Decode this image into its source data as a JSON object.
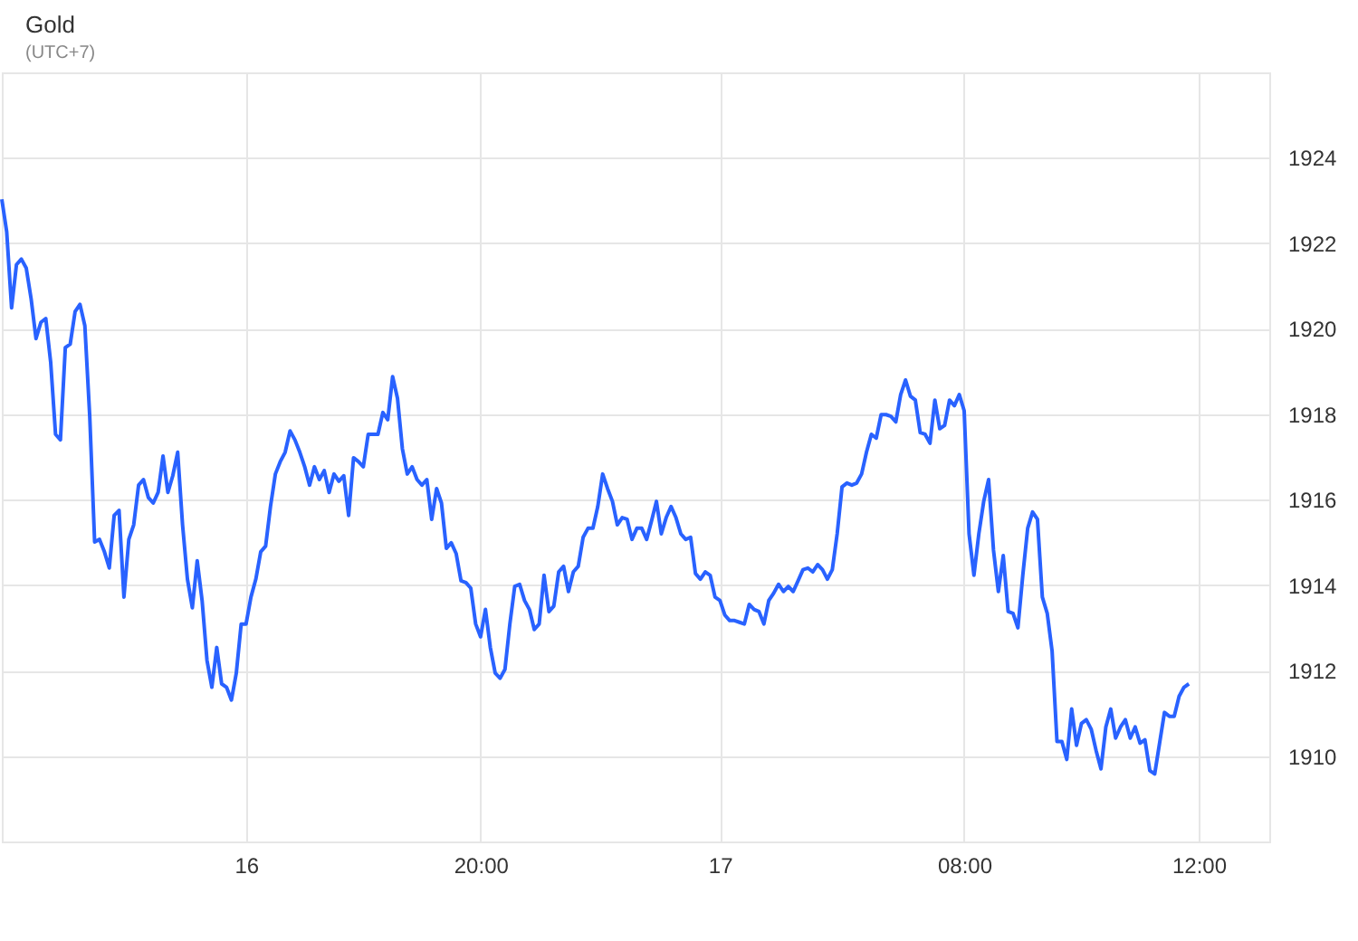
{
  "chart_data": {
    "type": "line",
    "title": "Gold",
    "subtitle": "(UTC+7)",
    "categories": [
      null,
      null,
      null,
      null,
      null,
      null,
      null,
      null,
      null,
      null,
      null,
      null,
      null,
      null,
      null,
      null,
      null,
      null,
      null,
      null,
      null,
      null,
      null,
      null,
      null,
      null,
      null,
      null,
      null,
      null,
      null,
      null,
      null,
      null,
      null,
      null,
      null,
      null,
      null,
      null,
      null,
      null,
      null,
      null,
      null,
      null,
      null,
      null,
      null,
      null,
      "16",
      null,
      null,
      null,
      null,
      null,
      null,
      null,
      null,
      null,
      null,
      null,
      null,
      null,
      null,
      null,
      null,
      null,
      null,
      null,
      null,
      null,
      null,
      null,
      null,
      null,
      null,
      null,
      null,
      null,
      null,
      null,
      null,
      null,
      null,
      null,
      null,
      null,
      null,
      null,
      null,
      null,
      null,
      null,
      null,
      null,
      null,
      null,
      "20:00",
      null,
      null,
      null,
      null,
      null,
      null,
      null,
      null,
      null,
      null,
      null,
      null,
      null,
      null,
      null,
      null,
      null,
      null,
      null,
      null,
      null,
      null,
      null,
      null,
      null,
      null,
      null,
      null,
      null,
      null,
      null,
      null,
      null,
      null,
      null,
      null,
      null,
      null,
      null,
      null,
      null,
      null,
      null,
      null,
      null,
      null,
      null,
      null,
      "17",
      null,
      null,
      null,
      null,
      null,
      null,
      null,
      null,
      null,
      null,
      null,
      null,
      null,
      null,
      null,
      null,
      null,
      null,
      null,
      null,
      null,
      null,
      null,
      null,
      null,
      null,
      null,
      null,
      null,
      null,
      null,
      null,
      null,
      null,
      null,
      null,
      null,
      null,
      null,
      null,
      null,
      null,
      null,
      null,
      null,
      null,
      null,
      null,
      null,
      "08:00",
      null,
      null,
      null,
      null,
      null,
      null,
      null,
      null,
      null,
      null,
      null,
      null,
      null,
      null,
      null,
      null,
      null,
      null,
      null,
      null,
      null,
      null,
      null,
      null,
      null,
      null,
      null,
      null,
      null,
      null,
      null,
      null,
      null,
      null,
      null,
      null,
      null,
      null,
      null,
      null,
      null,
      null,
      null,
      null,
      null,
      null,
      null,
      "12:00"
    ],
    "values": [
      1923.03,
      1922.27,
      1920.49,
      1921.5,
      1921.63,
      1921.42,
      1920.7,
      1919.77,
      1920.15,
      1920.24,
      1919.22,
      1917.53,
      1917.4,
      1919.56,
      1919.64,
      1920.4,
      1920.57,
      1920.07,
      1917.95,
      1915.01,
      1915.07,
      1914.78,
      1914.4,
      1915.63,
      1915.75,
      1913.72,
      1915.07,
      1915.41,
      1916.34,
      1916.47,
      1916.05,
      1915.92,
      1916.17,
      1917.02,
      1916.17,
      1916.56,
      1917.11,
      1915.41,
      1914.14,
      1913.47,
      1914.57,
      1913.64,
      1912.24,
      1911.61,
      1912.54,
      1911.69,
      1911.61,
      1911.31,
      1911.94,
      1913.09,
      1913.09,
      1913.72,
      1914.14,
      1914.78,
      1914.91,
      1915.84,
      1916.6,
      1916.89,
      1917.11,
      1917.61,
      1917.4,
      1917.11,
      1916.77,
      1916.34,
      1916.77,
      1916.47,
      1916.68,
      1916.17,
      1916.6,
      1916.43,
      1916.56,
      1915.63,
      1916.98,
      1916.89,
      1916.77,
      1917.53,
      1917.53,
      1917.53,
      1918.04,
      1917.87,
      1918.88,
      1918.37,
      1917.19,
      1916.6,
      1916.77,
      1916.47,
      1916.34,
      1916.47,
      1915.54,
      1916.26,
      1915.92,
      1914.86,
      1914.99,
      1914.74,
      1914.1,
      1914.06,
      1913.93,
      1913.09,
      1912.79,
      1913.43,
      1912.54,
      1911.94,
      1911.82,
      1912.03,
      1913.09,
      1913.97,
      1914.02,
      1913.64,
      1913.43,
      1912.96,
      1913.09,
      1914.23,
      1913.38,
      1913.51,
      1914.31,
      1914.44,
      1913.85,
      1914.31,
      1914.44,
      1915.12,
      1915.33,
      1915.33,
      1915.84,
      1916.6,
      1916.26,
      1915.96,
      1915.41,
      1915.58,
      1915.54,
      1915.07,
      1915.33,
      1915.33,
      1915.07,
      1915.5,
      1915.96,
      1915.2,
      1915.58,
      1915.84,
      1915.58,
      1915.2,
      1915.07,
      1915.12,
      1914.27,
      1914.14,
      1914.31,
      1914.23,
      1913.72,
      1913.64,
      1913.3,
      1913.17,
      1913.17,
      1913.13,
      1913.09,
      1913.55,
      1913.43,
      1913.38,
      1913.09,
      1913.64,
      1913.81,
      1914.02,
      1913.85,
      1913.97,
      1913.85,
      1914.1,
      1914.36,
      1914.4,
      1914.31,
      1914.48,
      1914.36,
      1914.14,
      1914.36,
      1915.2,
      1916.3,
      1916.39,
      1916.34,
      1916.39,
      1916.6,
      1917.11,
      1917.53,
      1917.44,
      1917.99,
      1917.99,
      1917.95,
      1917.82,
      1918.46,
      1918.8,
      1918.42,
      1918.33,
      1917.57,
      1917.53,
      1917.32,
      1918.33,
      1917.66,
      1917.74,
      1918.33,
      1918.2,
      1918.46,
      1918.08,
      1915.2,
      1914.23,
      1915.2,
      1915.96,
      1916.47,
      1914.82,
      1913.85,
      1914.69,
      1913.38,
      1913.34,
      1913.0,
      1914.23,
      1915.33,
      1915.71,
      1915.54,
      1913.72,
      1913.34,
      1912.45,
      1910.34,
      1910.34,
      1909.92,
      1911.1,
      1910.25,
      1910.76,
      1910.85,
      1910.63,
      1910.13,
      1909.7,
      1910.68,
      1911.1,
      1910.42,
      1910.68,
      1910.85,
      1910.42,
      1910.68,
      1910.3,
      1910.38,
      1909.66,
      1909.58,
      1910.3,
      1911.02,
      1910.93,
      1910.93,
      1911.4,
      1911.61,
      1911.69,
      null,
      null
    ],
    "color": "#2962ff",
    "ylim": [
      1908,
      1926
    ],
    "yticks": [
      1910,
      1912,
      1914,
      1916,
      1918,
      1920,
      1922,
      1924
    ],
    "grid": true,
    "marker": "none",
    "line_style": "solid"
  }
}
